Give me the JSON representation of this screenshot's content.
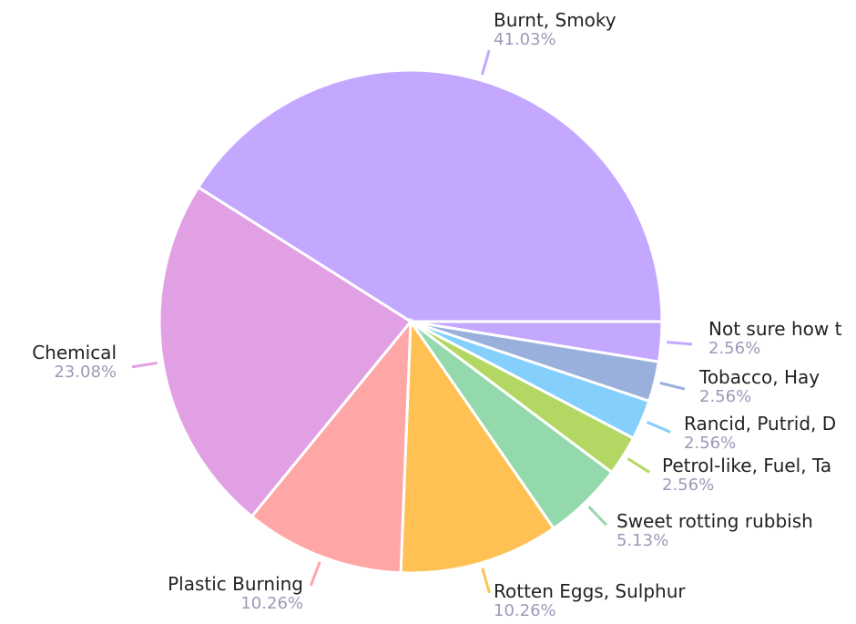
{
  "chart_data": {
    "type": "pie",
    "title": "",
    "categories": [
      "Burnt, Smoky",
      "Not sure how to describe it",
      "Tobacco, Hay",
      "Rancid, Putrid, Decaying",
      "Petrol-like, Fuel, Tar",
      "Sweet rotting rubbish",
      "Rotten Eggs, Sulphur",
      "Plastic Burning",
      "Chemical"
    ],
    "display_labels": [
      "Burnt, Smoky",
      "Not sure how t",
      "Tobacco, Hay",
      "Rancid, Putrid, D",
      "Petrol-like, Fuel, Ta",
      "Sweet rotting rubbish",
      "Rotten Eggs, Sulphur",
      "Plastic Burning",
      "Chemical"
    ],
    "values": [
      41.03,
      2.56,
      2.56,
      2.56,
      2.56,
      5.13,
      10.26,
      10.26,
      23.08
    ],
    "percent_labels": [
      "41.03%",
      "2.56%",
      "2.56%",
      "2.56%",
      "2.56%",
      "5.13%",
      "10.26%",
      "10.26%",
      "23.08%"
    ],
    "colors": [
      "#c4a8ff",
      "#c4a8ff",
      "#9ab0dc",
      "#84cffc",
      "#b3d763",
      "#93d9ab",
      "#ffc154",
      "#fea7a6",
      "#e1a0e4"
    ],
    "legend": "none",
    "label_style": "outside-with-leader-lines"
  }
}
